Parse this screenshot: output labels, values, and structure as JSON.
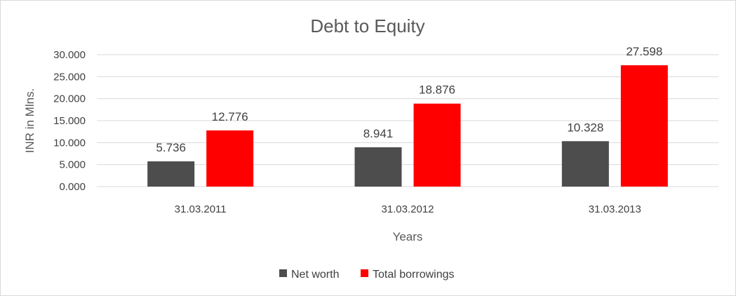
{
  "chart_data": {
    "type": "bar",
    "title": "Debt to Equity",
    "xlabel": "Years",
    "ylabel": "INR in Mlns.",
    "categories": [
      "31.03.2011",
      "31.03.2012",
      "31.03.2013"
    ],
    "series": [
      {
        "name": "Net worth",
        "values": [
          5.736,
          8.941,
          10.328
        ],
        "labels": [
          "5.736",
          "8.941",
          "10.328"
        ],
        "color": "#4d4d4d"
      },
      {
        "name": "Total borrowings",
        "values": [
          12.776,
          18.876,
          27.598
        ],
        "labels": [
          "12.776",
          "18.876",
          "27.598"
        ],
        "color": "#ff0000"
      }
    ],
    "ylim": [
      0,
      30
    ],
    "yticks": [
      "0.000",
      "5.000",
      "10.000",
      "15.000",
      "20.000",
      "25.000",
      "30.000"
    ],
    "grid": true,
    "legend": "bottom"
  }
}
